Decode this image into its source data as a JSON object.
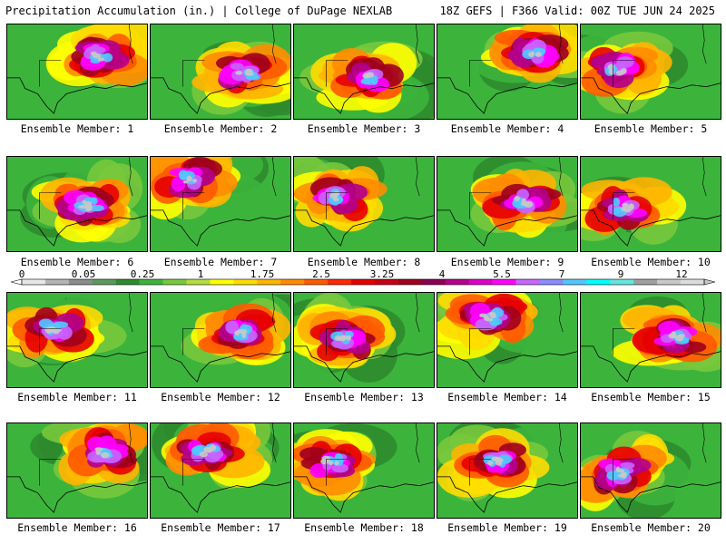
{
  "header": {
    "title": "Precipitation Accumulation (in.) | College of DuPage NEXLAB",
    "run_info": "18Z GEFS | F366 Valid: 00Z TUE JUN 24 2025"
  },
  "panels": [
    {
      "label": "Ensemble Member: 1",
      "seed": 11
    },
    {
      "label": "Ensemble Member: 2",
      "seed": 23
    },
    {
      "label": "Ensemble Member: 3",
      "seed": 37
    },
    {
      "label": "Ensemble Member: 4",
      "seed": 41
    },
    {
      "label": "Ensemble Member: 5",
      "seed": 53
    },
    {
      "label": "Ensemble Member: 6",
      "seed": 67
    },
    {
      "label": "Ensemble Member: 7",
      "seed": 71
    },
    {
      "label": "Ensemble Member: 8",
      "seed": 83
    },
    {
      "label": "Ensemble Member: 9",
      "seed": 97
    },
    {
      "label": "Ensemble Member: 10",
      "seed": 101
    },
    {
      "label": "Ensemble Member: 11",
      "seed": 113
    },
    {
      "label": "Ensemble Member: 12",
      "seed": 127
    },
    {
      "label": "Ensemble Member: 13",
      "seed": 131
    },
    {
      "label": "Ensemble Member: 14",
      "seed": 149
    },
    {
      "label": "Ensemble Member: 15",
      "seed": 151
    },
    {
      "label": "Ensemble Member: 16",
      "seed": 163
    },
    {
      "label": "Ensemble Member: 17",
      "seed": 173
    },
    {
      "label": "Ensemble Member: 18",
      "seed": 181
    },
    {
      "label": "Ensemble Member: 19",
      "seed": 191
    },
    {
      "label": "Ensemble Member: 20",
      "seed": 199
    }
  ],
  "colorbar": {
    "tick_labels": [
      "0",
      "0.05",
      "0.25",
      "1",
      "1.75",
      "2.5",
      "3.25",
      "4",
      "5.5",
      "7",
      "9",
      "12"
    ],
    "colors": [
      "#e6e6e6",
      "#b4b4b4",
      "#8c8c8c",
      "#5a9a5a",
      "#2e8b2e",
      "#3cb43c",
      "#78c83c",
      "#b4dc3c",
      "#ffff00",
      "#ffdc00",
      "#ffb400",
      "#ff8c00",
      "#ff5a00",
      "#ff2800",
      "#e60000",
      "#c80014",
      "#a0001e",
      "#8c0050",
      "#b4008c",
      "#dc00c8",
      "#ff00ff",
      "#c864ff",
      "#8c8cff",
      "#50c8ff",
      "#00ffff",
      "#64e6dc",
      "#a0a0a0",
      "#c8c8c8",
      "#dcdcdc"
    ]
  }
}
